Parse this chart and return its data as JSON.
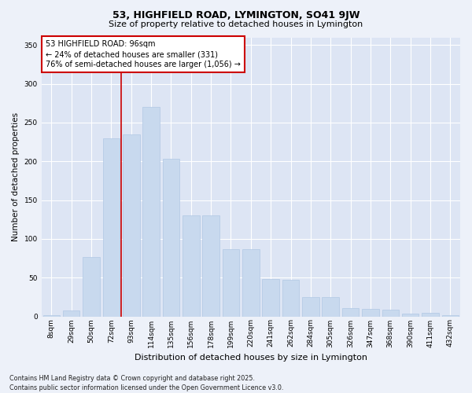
{
  "title_line1": "53, HIGHFIELD ROAD, LYMINGTON, SO41 9JW",
  "title_line2": "Size of property relative to detached houses in Lymington",
  "xlabel": "Distribution of detached houses by size in Lymington",
  "ylabel": "Number of detached properties",
  "categories": [
    "8sqm",
    "29sqm",
    "50sqm",
    "72sqm",
    "93sqm",
    "114sqm",
    "135sqm",
    "156sqm",
    "178sqm",
    "199sqm",
    "220sqm",
    "241sqm",
    "262sqm",
    "284sqm",
    "305sqm",
    "326sqm",
    "347sqm",
    "368sqm",
    "390sqm",
    "411sqm",
    "432sqm"
  ],
  "values": [
    2,
    8,
    77,
    230,
    235,
    270,
    203,
    130,
    130,
    87,
    87,
    48,
    47,
    25,
    25,
    11,
    10,
    9,
    4,
    5,
    2
  ],
  "bar_color": "#c8d9ee",
  "bar_edge_color": "#b0c8e4",
  "vline_color": "#cc0000",
  "vline_x_index": 3.5,
  "annotation_box_text": "53 HIGHFIELD ROAD: 96sqm\n← 24% of detached houses are smaller (331)\n76% of semi-detached houses are larger (1,056) →",
  "annotation_box_color": "#ffffff",
  "annotation_box_edge_color": "#cc0000",
  "ylim": [
    0,
    360
  ],
  "yticks": [
    0,
    50,
    100,
    150,
    200,
    250,
    300,
    350
  ],
  "footer_text": "Contains HM Land Registry data © Crown copyright and database right 2025.\nContains public sector information licensed under the Open Government Licence v3.0.",
  "bg_color": "#edf1f9",
  "plot_bg_color": "#dde5f4",
  "title_fontsize": 9,
  "subtitle_fontsize": 8,
  "ylabel_fontsize": 7.5,
  "xlabel_fontsize": 8,
  "tick_fontsize": 6.5,
  "footer_fontsize": 5.8,
  "annot_fontsize": 7
}
